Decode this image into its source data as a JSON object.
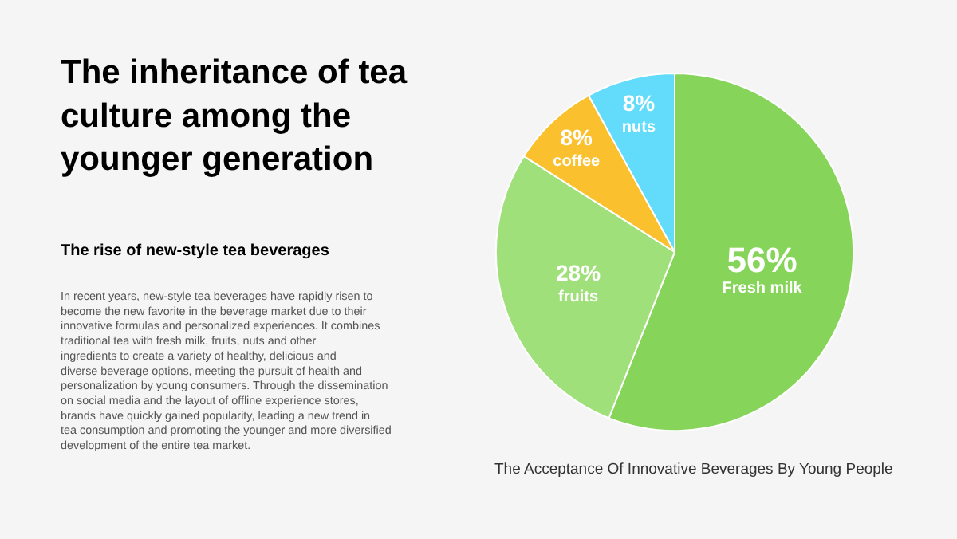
{
  "chart_data": {
    "type": "pie",
    "title": "The inheritance of tea culture among the younger generation",
    "subtitle": "The rise of new-style tea beverages",
    "categories": [
      "Fresh milk",
      "fruits",
      "coffee",
      "nuts"
    ],
    "values": [
      56,
      28,
      8,
      8
    ],
    "value_labels": [
      "56%",
      "28%",
      "8%",
      "8%"
    ],
    "colors": [
      "#86d45a",
      "#a0e07a",
      "#fbc02d",
      "#62dcfa"
    ],
    "annotations": [
      "In recent years, new-style tea beverages have rapidly risen to become the new favorite in the beverage market due to their innovative formulas and personalized experiences. It combines traditional tea with fresh milk, fruits, nuts and other ingredients to create a variety of healthy, delicious and diverse beverage options, meeting the pursuit of health and personalization by young consumers. Through the dissemination on social media and the layout of offline experience stores, brands have quickly gained popularity, leading a new trend in tea consumption and promoting the younger and more diversified development of the entire tea market.",
      "The Acceptance Of Innovative Beverages By Young People"
    ],
    "legend": false
  }
}
